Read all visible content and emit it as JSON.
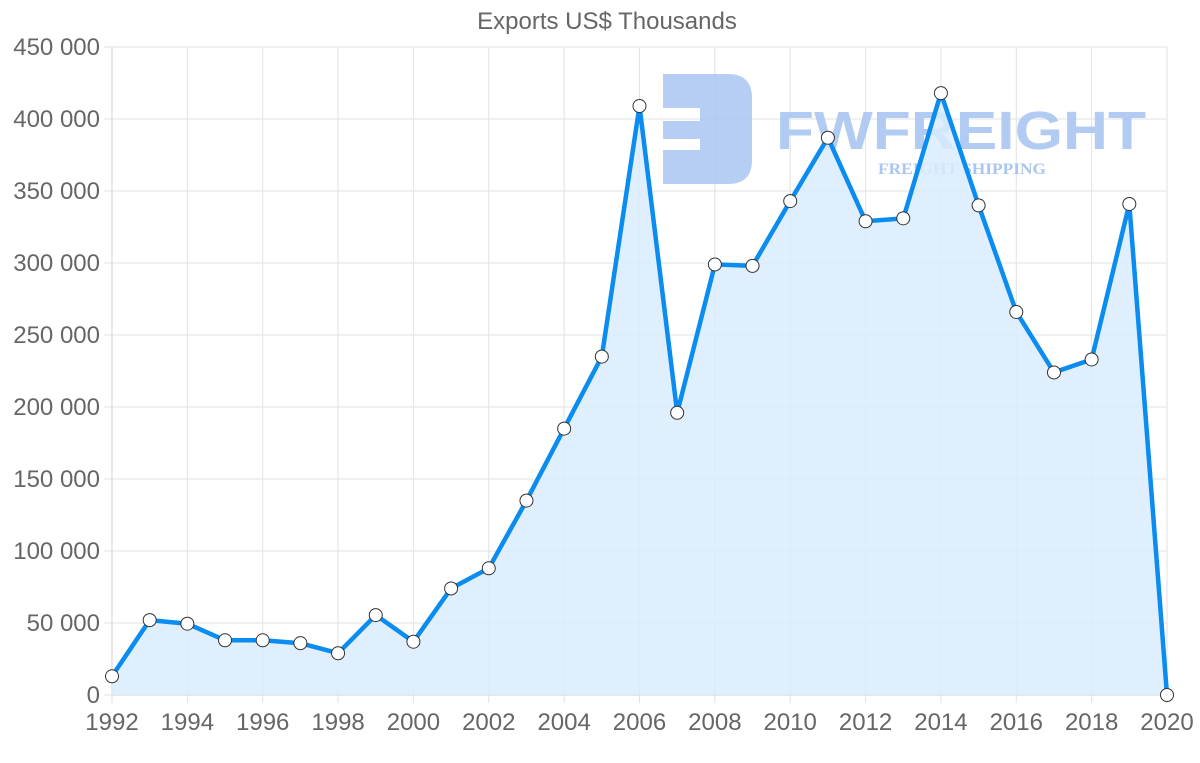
{
  "chart_data": {
    "type": "line",
    "title": "Exports US$ Thousands",
    "xlabel": "",
    "ylabel": "",
    "x": [
      1992,
      1993,
      1994,
      1995,
      1996,
      1997,
      1998,
      1999,
      2000,
      2001,
      2002,
      2003,
      2004,
      2005,
      2006,
      2007,
      2008,
      2009,
      2010,
      2011,
      2012,
      2013,
      2014,
      2015,
      2016,
      2017,
      2018,
      2019,
      2020
    ],
    "series": [
      {
        "name": "Exports US$ Thousands",
        "values": [
          13000,
          52000,
          49500,
          38000,
          38000,
          36000,
          29000,
          55500,
          37000,
          74000,
          88000,
          135000,
          185000,
          235000,
          409000,
          196000,
          299000,
          298000,
          343000,
          387000,
          329000,
          331000,
          418000,
          340000,
          266000,
          224000,
          233000,
          341000,
          0
        ],
        "color": "#0a8cf0",
        "fill": "#d9ecfd",
        "marker_fill": "#ffffff"
      }
    ],
    "xticks": [
      "1992",
      "1994",
      "1996",
      "1998",
      "2000",
      "2002",
      "2004",
      "2006",
      "2008",
      "2010",
      "2012",
      "2014",
      "2016",
      "2018",
      "2020"
    ],
    "yticks": [
      "0",
      "50 000",
      "100 000",
      "150 000",
      "200 000",
      "250 000",
      "300 000",
      "350 000",
      "400 000",
      "450 000"
    ],
    "ylim": [
      0,
      450000
    ],
    "xlim": [
      1992,
      2020
    ],
    "grid": true,
    "legend": null
  },
  "watermark": {
    "brand": "FWFREIGHT",
    "tagline": "FREIGHT SHIPPING",
    "color": "#a9c6f2"
  }
}
